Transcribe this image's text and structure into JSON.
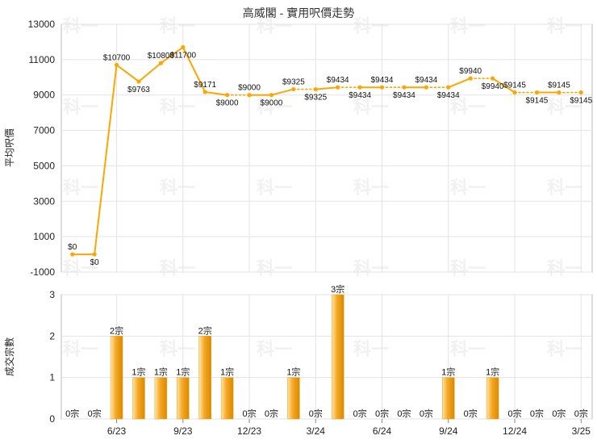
{
  "chart_data": [
    {
      "type": "line",
      "title": "高威閣 - 實用呎價走勢",
      "ylabel": "平均呎價",
      "ylim": [
        -1000,
        13000
      ],
      "yticks": [
        -1000,
        1000,
        3000,
        5000,
        7000,
        9000,
        11000,
        13000
      ],
      "grid": true,
      "color": "#ffa500",
      "values": [
        0,
        0,
        10700,
        9763,
        10800,
        11700,
        9171,
        9000,
        9000,
        9000,
        9325,
        9325,
        9434,
        9434,
        9434,
        9434,
        9434,
        9434,
        9940,
        9940,
        9145,
        9145,
        9145,
        9145
      ],
      "labels": [
        "$0",
        "$0",
        "$10700",
        "$9763",
        "$10800",
        "$11700",
        "$9171",
        "$9000",
        "$9000",
        "$9000",
        "$9325",
        "$9325",
        "$9434",
        "$9434",
        "$9434",
        "$9434",
        "$9434",
        "$9434",
        "$9940",
        "$9940",
        "$9145",
        "$9145",
        "$9145",
        "$9145"
      ],
      "dotted": [
        false,
        false,
        false,
        false,
        false,
        false,
        false,
        false,
        true,
        false,
        false,
        true,
        false,
        true,
        false,
        true,
        false,
        true,
        false,
        true,
        false,
        true,
        false,
        true
      ]
    },
    {
      "type": "bar",
      "ylabel": "成交宗數",
      "ylim": [
        0,
        3
      ],
      "yticks": [
        0,
        1,
        2,
        3
      ],
      "grid": true,
      "color": "#f5a623",
      "values": [
        0,
        0,
        2,
        1,
        1,
        1,
        2,
        1,
        0,
        0,
        1,
        0,
        3,
        0,
        0,
        0,
        0,
        1,
        0,
        1,
        0,
        0,
        0,
        0
      ],
      "labels": [
        "0宗",
        "0宗",
        "2宗",
        "1宗",
        "1宗",
        "1宗",
        "2宗",
        "1宗",
        "0宗",
        "0宗",
        "1宗",
        "0宗",
        "3宗",
        "0宗",
        "0宗",
        "0宗",
        "0宗",
        "1宗",
        "0宗",
        "1宗",
        "0宗",
        "0宗",
        "0宗",
        "0宗"
      ],
      "xticks": [
        {
          "label": "6/23",
          "index": 2
        },
        {
          "label": "9/23",
          "index": 5
        },
        {
          "label": "12/23",
          "index": 8
        },
        {
          "label": "3/24",
          "index": 11
        },
        {
          "label": "6/24",
          "index": 14
        },
        {
          "label": "9/24",
          "index": 17
        },
        {
          "label": "12/24",
          "index": 20
        },
        {
          "label": "3/25",
          "index": 23
        }
      ]
    }
  ],
  "watermark": "科一"
}
